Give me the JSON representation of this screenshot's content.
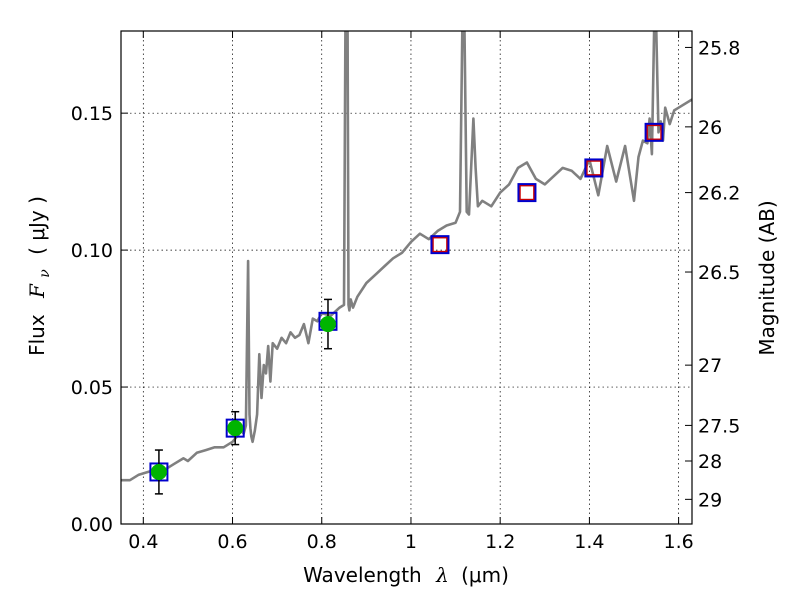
{
  "chart_data": {
    "type": "line",
    "title": "",
    "xlabel": "Wavelength",
    "xlabel_symbol": "λ",
    "xlabel_unit": "(μm)",
    "ylabel": "Flux",
    "ylabel_symbol": "F",
    "ylabel_symbol_sub": "ν",
    "ylabel_unit": "( μJy )",
    "y2label": "Magnitude (AB)",
    "xlim": [
      0.35,
      1.63
    ],
    "ylim": [
      0.0,
      0.18
    ],
    "grid": true,
    "x_ticks": [
      0.4,
      0.6,
      0.8,
      1.0,
      1.2,
      1.4,
      1.6
    ],
    "x_tick_labels": [
      "0.4",
      "0.6",
      "0.8",
      "1",
      "1.2",
      "1.4",
      "1.6"
    ],
    "y_ticks": [
      0.0,
      0.05,
      0.1,
      0.15
    ],
    "y_tick_labels": [
      "0.00",
      "0.05",
      "0.10",
      "0.15"
    ],
    "y2_ticks": [
      {
        "label": "25.8",
        "flux": 0.174
      },
      {
        "label": "26",
        "flux": 0.145
      },
      {
        "label": "26.2",
        "flux": 0.121
      },
      {
        "label": "26.5",
        "flux": 0.092
      },
      {
        "label": "27",
        "flux": 0.058
      },
      {
        "label": "27.5",
        "flux": 0.036
      },
      {
        "label": "28",
        "flux": 0.023
      },
      {
        "label": "29",
        "flux": 0.009
      }
    ],
    "colors": {
      "sed": "#808080",
      "photometry": "#00b400",
      "model_box": "#0000cc",
      "model_box_red": "#cc0000",
      "errorbar": "#000000"
    },
    "series": [
      {
        "kind": "sed",
        "x": [
          0.35,
          0.37,
          0.39,
          0.41,
          0.43,
          0.45,
          0.47,
          0.49,
          0.5,
          0.52,
          0.54,
          0.56,
          0.58,
          0.6,
          0.61,
          0.62,
          0.625,
          0.63,
          0.635,
          0.638,
          0.64,
          0.642,
          0.645,
          0.65,
          0.655,
          0.66,
          0.665,
          0.67,
          0.675,
          0.68,
          0.685,
          0.69,
          0.7,
          0.71,
          0.72,
          0.73,
          0.74,
          0.75,
          0.76,
          0.77,
          0.78,
          0.79,
          0.8,
          0.82,
          0.84,
          0.85,
          0.853,
          0.856,
          0.858,
          0.86,
          0.862,
          0.865,
          0.87,
          0.88,
          0.9,
          0.92,
          0.94,
          0.96,
          0.98,
          1.0,
          1.02,
          1.04,
          1.06,
          1.08,
          1.1,
          1.11,
          1.115,
          1.12,
          1.125,
          1.13,
          1.14,
          1.145,
          1.15,
          1.16,
          1.18,
          1.2,
          1.22,
          1.24,
          1.26,
          1.28,
          1.3,
          1.32,
          1.34,
          1.36,
          1.38,
          1.4,
          1.42,
          1.44,
          1.46,
          1.48,
          1.5,
          1.51,
          1.52,
          1.53,
          1.535,
          1.54,
          1.545,
          1.55,
          1.555,
          1.56,
          1.565,
          1.57,
          1.58,
          1.59,
          1.6,
          1.63
        ],
        "y": [
          0.016,
          0.016,
          0.018,
          0.019,
          0.02,
          0.02,
          0.022,
          0.024,
          0.023,
          0.026,
          0.027,
          0.028,
          0.028,
          0.03,
          0.032,
          0.034,
          0.033,
          0.036,
          0.096,
          0.04,
          0.035,
          0.032,
          0.03,
          0.034,
          0.04,
          0.062,
          0.046,
          0.058,
          0.055,
          0.065,
          0.052,
          0.066,
          0.064,
          0.068,
          0.066,
          0.07,
          0.068,
          0.069,
          0.073,
          0.066,
          0.075,
          0.074,
          0.077,
          0.076,
          0.079,
          0.08,
          0.18,
          0.18,
          0.18,
          0.08,
          0.078,
          0.082,
          0.079,
          0.083,
          0.088,
          0.091,
          0.094,
          0.097,
          0.099,
          0.103,
          0.106,
          0.104,
          0.107,
          0.109,
          0.11,
          0.114,
          0.18,
          0.18,
          0.114,
          0.113,
          0.148,
          0.13,
          0.116,
          0.118,
          0.116,
          0.121,
          0.124,
          0.13,
          0.132,
          0.126,
          0.124,
          0.127,
          0.13,
          0.129,
          0.126,
          0.133,
          0.12,
          0.138,
          0.125,
          0.138,
          0.118,
          0.134,
          0.14,
          0.139,
          0.148,
          0.135,
          0.18,
          0.18,
          0.143,
          0.147,
          0.14,
          0.152,
          0.146,
          0.151,
          0.152,
          0.155
        ]
      },
      {
        "kind": "photometry",
        "x": [
          0.435,
          0.606,
          0.814
        ],
        "y": [
          0.019,
          0.035,
          0.073
        ],
        "yerr": [
          0.008,
          0.006,
          0.009
        ]
      },
      {
        "kind": "model_box",
        "x": [
          0.435,
          0.606,
          0.814,
          1.065,
          1.26,
          1.41,
          1.545
        ],
        "y": [
          0.019,
          0.035,
          0.074,
          0.102,
          0.121,
          0.13,
          0.143
        ],
        "inner_red": [
          false,
          false,
          false,
          true,
          true,
          true,
          true
        ]
      }
    ]
  }
}
